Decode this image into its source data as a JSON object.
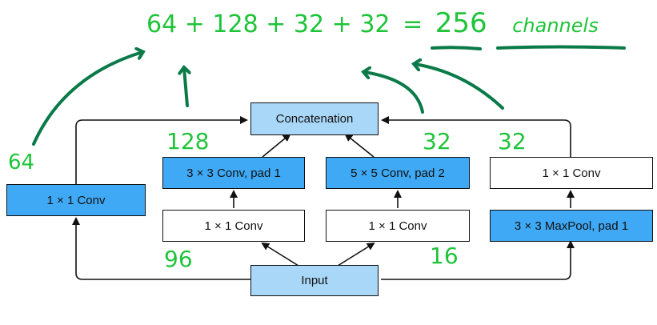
{
  "equation": {
    "term1": "64",
    "plus1": "+",
    "term2": "128",
    "plus2": "+",
    "term3": "32",
    "plus3": "+",
    "term4": "32",
    "equals": "=",
    "total": "256",
    "unit": "channels"
  },
  "nodes": {
    "concatenation": "Concatenation",
    "input": "Input",
    "path1_conv1x1": "1 × 1 Conv",
    "path2_conv3x3": "3 × 3 Conv, pad 1",
    "path2_conv1x1": "1 × 1 Conv",
    "path3_conv5x5": "5 × 5 Conv, pad 2",
    "path3_conv1x1": "1 × 1 Conv",
    "path4_conv1x1": "1 × 1 Conv",
    "path4_maxpool": "3 × 3 MaxPool, pad 1"
  },
  "annotations": {
    "path1_channels": "64",
    "path2_channels": "128",
    "path2_reduce": "96",
    "path3_channels": "32",
    "path3_reduce": "16",
    "path4_channels": "32"
  },
  "colors": {
    "conv_highlight": "#3fa9f5",
    "io_box": "#a9d7f8",
    "handwriting_green": "#1fc43a",
    "annotation_dark_green": "#0a7a48"
  }
}
